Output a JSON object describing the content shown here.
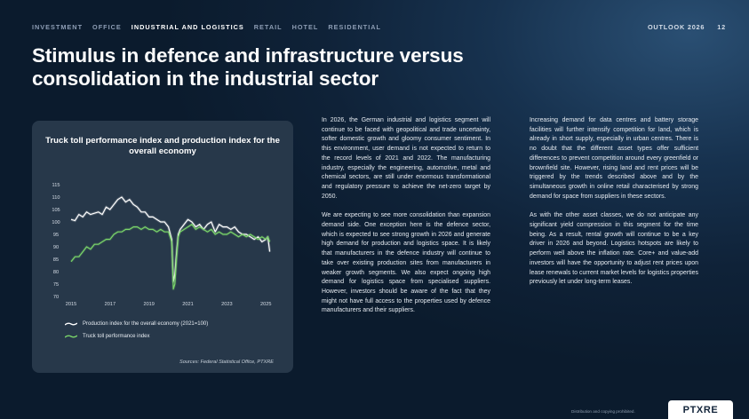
{
  "nav": {
    "items": [
      "INVESTMENT",
      "OFFICE",
      "INDUSTRIAL AND LOGISTICS",
      "RETAIL",
      "HOTEL",
      "RESIDENTIAL"
    ],
    "active_index": 2
  },
  "header": {
    "outlook": "OUTLOOK 2026",
    "page_number": "12"
  },
  "title": "Stimulus in defence and infrastructure versus consolidation in the industrial sector",
  "chart_data": {
    "type": "line",
    "title": "Truck toll performance index and production index for the overall economy",
    "xlabel": "",
    "ylabel": "",
    "x_ticks": [
      "2015",
      "2017",
      "2019",
      "2021",
      "2023",
      "2025"
    ],
    "y_ticks": [
      70,
      75,
      80,
      85,
      90,
      95,
      100,
      105,
      110,
      115
    ],
    "ylim": [
      70,
      115
    ],
    "xlim": [
      2015,
      2025.4
    ],
    "series": [
      {
        "name": "Production index for the overall economy (2021=100)",
        "color": "#ffffff",
        "x": [
          2015.0,
          2015.2,
          2015.4,
          2015.6,
          2015.8,
          2016.0,
          2016.2,
          2016.4,
          2016.6,
          2016.8,
          2017.0,
          2017.2,
          2017.4,
          2017.6,
          2017.8,
          2018.0,
          2018.2,
          2018.4,
          2018.6,
          2018.8,
          2019.0,
          2019.2,
          2019.4,
          2019.6,
          2019.8,
          2020.0,
          2020.17,
          2020.25,
          2020.33,
          2020.42,
          2020.5,
          2020.6,
          2020.8,
          2021.0,
          2021.2,
          2021.4,
          2021.6,
          2021.8,
          2022.0,
          2022.2,
          2022.4,
          2022.6,
          2022.8,
          2023.0,
          2023.2,
          2023.4,
          2023.6,
          2023.8,
          2024.0,
          2024.2,
          2024.4,
          2024.6,
          2024.8,
          2025.0,
          2025.1,
          2025.2
        ],
        "values": [
          101,
          100.5,
          103,
          102,
          104,
          103,
          103.5,
          104,
          103,
          106,
          105,
          107,
          109,
          110,
          108,
          109,
          107,
          106,
          104,
          104,
          102,
          102,
          101,
          100,
          100,
          98,
          93,
          76,
          79,
          88,
          95,
          97,
          99,
          101,
          100,
          98,
          99,
          97,
          99,
          100,
          96,
          99,
          98,
          98,
          97,
          98,
          96,
          95,
          95,
          94,
          93,
          94,
          92,
          93,
          94,
          88
        ]
      },
      {
        "name": "Truck toll performance index",
        "color": "#7bd66a",
        "x": [
          2015.0,
          2015.2,
          2015.4,
          2015.6,
          2015.8,
          2016.0,
          2016.2,
          2016.4,
          2016.6,
          2016.8,
          2017.0,
          2017.2,
          2017.4,
          2017.6,
          2017.8,
          2018.0,
          2018.2,
          2018.4,
          2018.6,
          2018.8,
          2019.0,
          2019.2,
          2019.4,
          2019.6,
          2019.8,
          2020.0,
          2020.17,
          2020.25,
          2020.33,
          2020.42,
          2020.5,
          2020.6,
          2020.8,
          2021.0,
          2021.2,
          2021.4,
          2021.6,
          2021.8,
          2022.0,
          2022.2,
          2022.4,
          2022.6,
          2022.8,
          2023.0,
          2023.2,
          2023.4,
          2023.6,
          2023.8,
          2024.0,
          2024.2,
          2024.4,
          2024.6,
          2024.8,
          2025.0,
          2025.1,
          2025.2
        ],
        "values": [
          84,
          86,
          86,
          88,
          90,
          89,
          91,
          91,
          92,
          93,
          93,
          95,
          96,
          96,
          97,
          97,
          98,
          98,
          97,
          98,
          97,
          97,
          96,
          97,
          96,
          96,
          92,
          73,
          75,
          86,
          94,
          96,
          97,
          98,
          99,
          97,
          98,
          97,
          96,
          97,
          95,
          96,
          95,
          95,
          96,
          95,
          94,
          95,
          94,
          95,
          94,
          93,
          94,
          93,
          94,
          92
        ]
      }
    ],
    "legend_position": "bottom"
  },
  "source": "Sources: Federal Statistical Office, PTXRE",
  "column1": [
    "In 2026, the German industrial and logistics segment will continue to be faced with geopolitical and trade uncertainty, softer domestic growth and gloomy consumer sentiment. In this environment, user demand is not expected to return to the record levels of 2021 and 2022. The manufacturing industry, especially the engineering, automotive, metal and chemical sectors, are still under enormous transformational and regulatory pressure to achieve the net-zero target by 2050.",
    "We are expecting to see more consolidation than expansion demand side. One exception here is the defence sector, which is expected to see strong growth in 2026 and generate high demand for production and logistics space. It is likely that manufacturers in the defence industry will continue to take over existing production sites from manufacturers in weaker growth segments. We also expect ongoing high demand for logistics space from specialised suppliers. However, investors should be aware of the fact that they might not have full access to the properties used by defence manufacturers and their suppliers."
  ],
  "column2": [
    "Increasing demand for data centres and battery storage facilities will further intensify competition for land, which is already in short supply, especially in urban centres. There is no doubt that the different asset types offer sufficient differences to prevent competition around every greenfield or brownfield site. However, rising land and rent prices will be triggered by the trends described above and by the simultaneous growth in online retail characterised by strong demand for space from suppliers in these sectors.",
    "As with the other asset classes, we do not anticipate any significant yield compression in this segment for the time being. As a result, rental growth will continue to be a key driver in 2026 and beyond. Logistics hotspots are likely to perform well above the inflation rate. Core+ and value-add investors will have the opportunity to adjust rent prices upon lease renewals to current market levels for logistics properties previously let under long-term leases."
  ],
  "footer": {
    "note": "Distribution and copying prohibited.",
    "logo": "PTXRE"
  }
}
